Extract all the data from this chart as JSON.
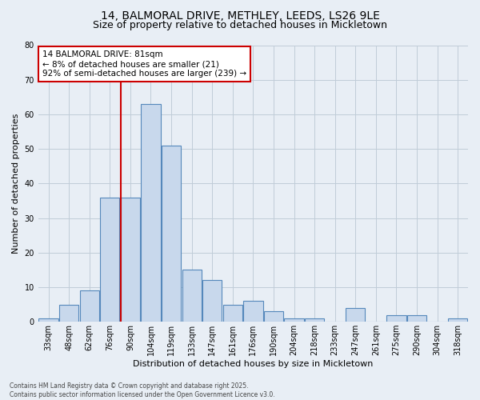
{
  "title_line1": "14, BALMORAL DRIVE, METHLEY, LEEDS, LS26 9LE",
  "title_line2": "Size of property relative to detached houses in Mickletown",
  "xlabel": "Distribution of detached houses by size in Mickletown",
  "ylabel": "Number of detached properties",
  "categories": [
    "33sqm",
    "48sqm",
    "62sqm",
    "76sqm",
    "90sqm",
    "104sqm",
    "119sqm",
    "133sqm",
    "147sqm",
    "161sqm",
    "176sqm",
    "190sqm",
    "204sqm",
    "218sqm",
    "233sqm",
    "247sqm",
    "261sqm",
    "275sqm",
    "290sqm",
    "304sqm",
    "318sqm"
  ],
  "values": [
    1,
    5,
    9,
    36,
    36,
    63,
    51,
    15,
    12,
    5,
    6,
    3,
    1,
    1,
    0,
    4,
    0,
    2,
    2,
    0,
    1
  ],
  "bar_color": "#c8d8ec",
  "bar_edge_color": "#5588bb",
  "grid_color": "#c0ccd8",
  "bg_color": "#e8eef5",
  "annotation_text": "14 BALMORAL DRIVE: 81sqm\n← 8% of detached houses are smaller (21)\n92% of semi-detached houses are larger (239) →",
  "annotation_box_color": "#ffffff",
  "annotation_box_edge_color": "#cc0000",
  "property_line_color": "#cc0000",
  "property_line_x": 3.55,
  "ylim": [
    0,
    80
  ],
  "yticks": [
    0,
    10,
    20,
    30,
    40,
    50,
    60,
    70,
    80
  ],
  "footer_line1": "Contains HM Land Registry data © Crown copyright and database right 2025.",
  "footer_line2": "Contains public sector information licensed under the Open Government Licence v3.0.",
  "title_fontsize": 10,
  "subtitle_fontsize": 9,
  "ylabel_fontsize": 8,
  "xlabel_fontsize": 8,
  "tick_fontsize": 7,
  "annotation_fontsize": 7.5
}
